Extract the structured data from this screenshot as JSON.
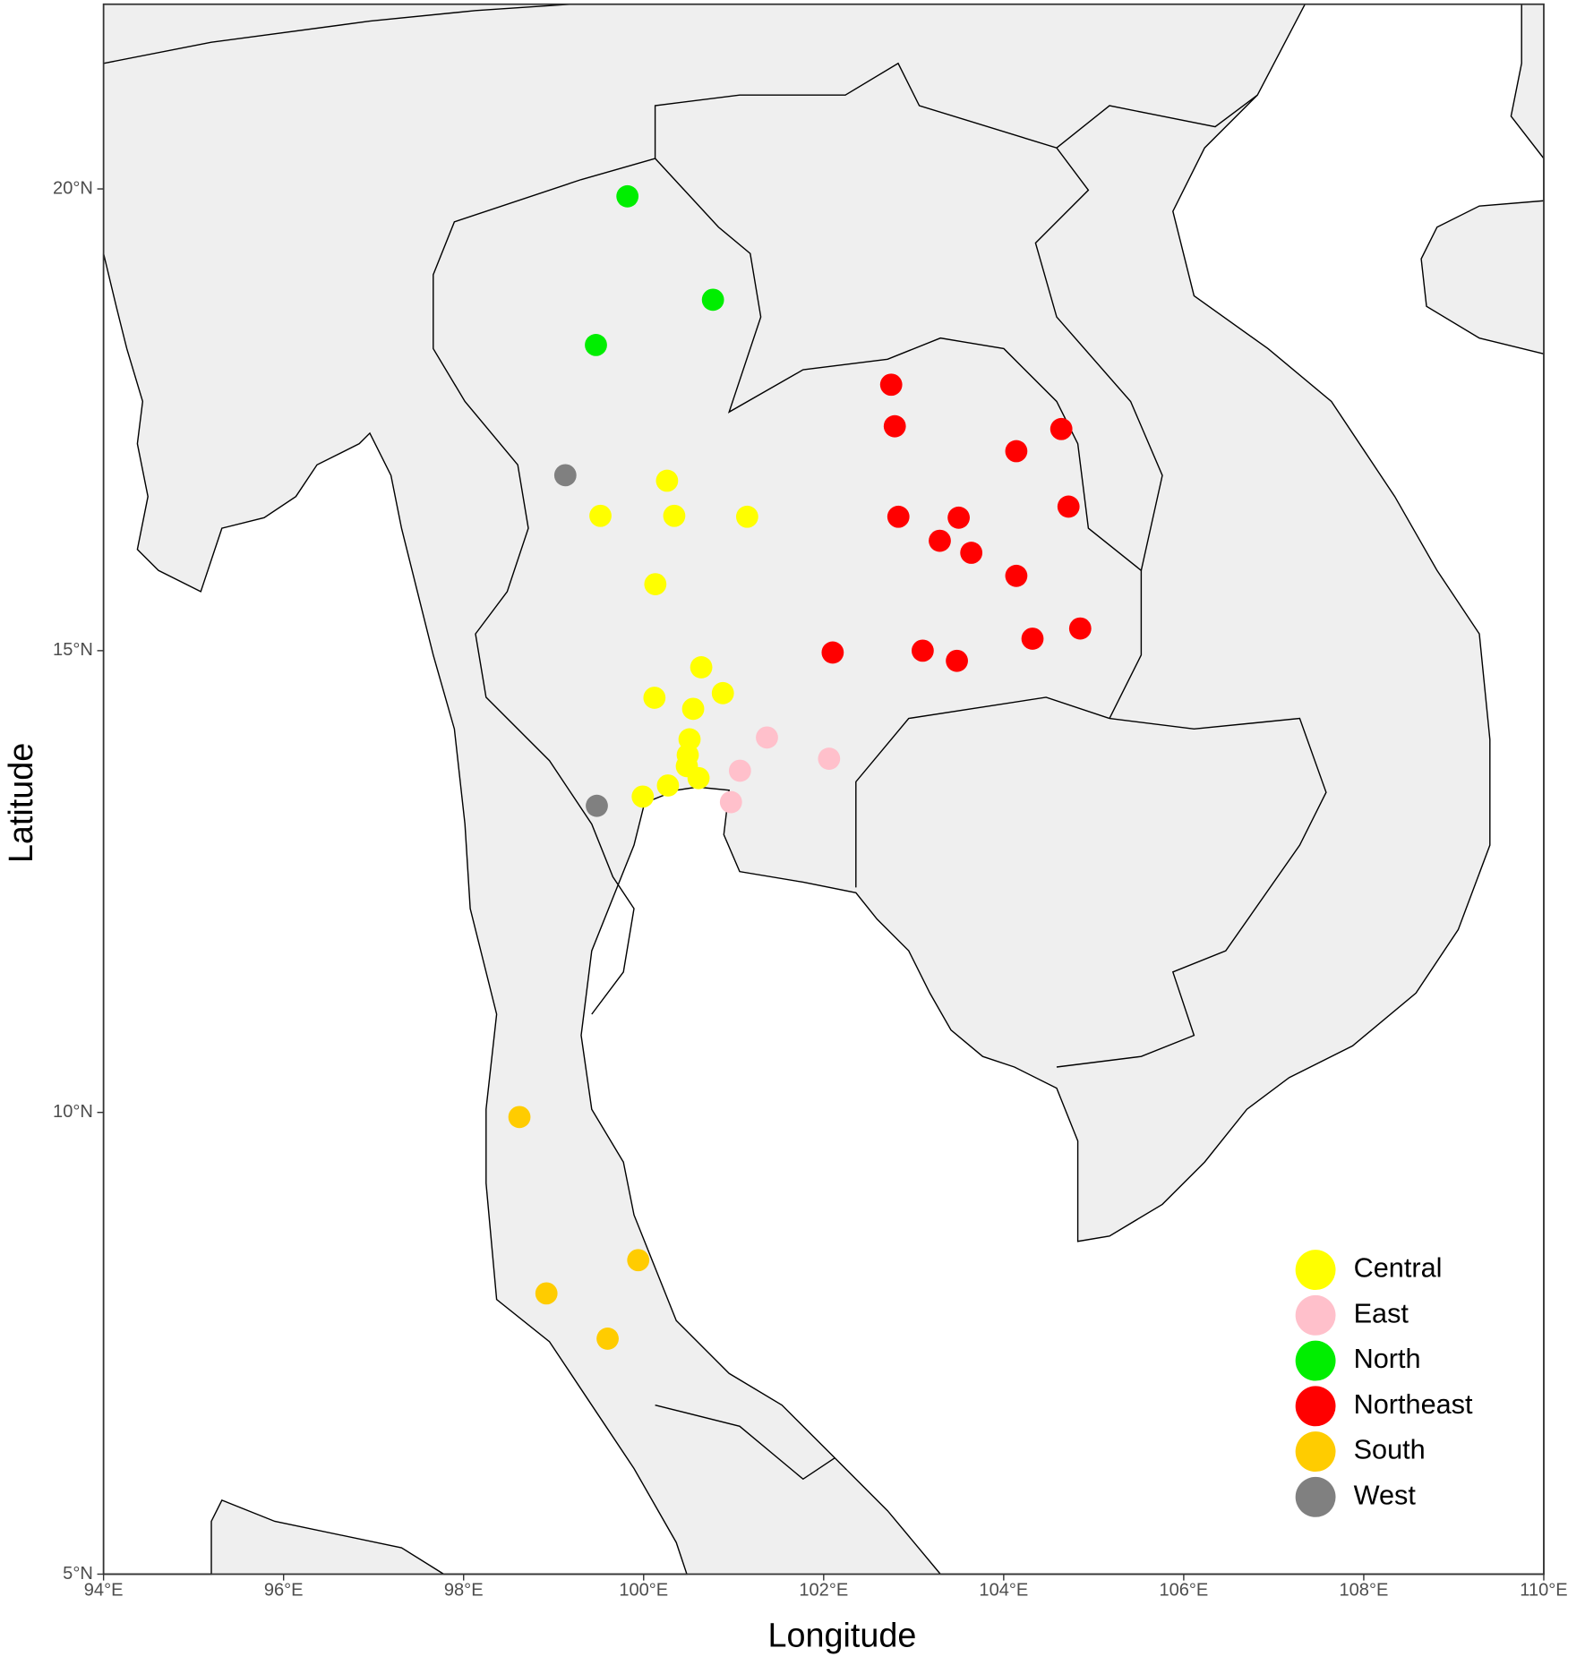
{
  "chart_data": {
    "type": "scatter",
    "x_label": "Longitude",
    "y_label": "Latitude",
    "xlim": [
      94,
      110
    ],
    "ylim": [
      5,
      22
    ],
    "xticks": [
      {
        "value": 94,
        "label": "94°E"
      },
      {
        "value": 96,
        "label": "96°E"
      },
      {
        "value": 98,
        "label": "98°E"
      },
      {
        "value": 100,
        "label": "100°E"
      },
      {
        "value": 102,
        "label": "102°E"
      },
      {
        "value": 104,
        "label": "104°E"
      },
      {
        "value": 106,
        "label": "106°E"
      },
      {
        "value": 108,
        "label": "108°E"
      },
      {
        "value": 110,
        "label": "110°E"
      }
    ],
    "yticks": [
      {
        "value": 5,
        "label": "5°N"
      },
      {
        "value": 10,
        "label": "10°N"
      },
      {
        "value": 15,
        "label": "15°N"
      },
      {
        "value": 20,
        "label": "20°N"
      }
    ],
    "legend_position": "bottom-right",
    "series": [
      {
        "name": "Central",
        "color": "#ffff00",
        "x": [
          100.26,
          99.52,
          100.34,
          101.15,
          100.13,
          100.64,
          100.12,
          100.88,
          100.55,
          100.51,
          100.49,
          100.48,
          100.61,
          100.27,
          99.99
        ],
        "values": [
          16.84,
          16.46,
          16.46,
          16.45,
          15.72,
          14.82,
          14.49,
          14.54,
          14.37,
          14.04,
          13.87,
          13.75,
          13.62,
          13.54,
          13.42
        ]
      },
      {
        "name": "East",
        "color": "#ffc0cb",
        "x": [
          101.37,
          102.06,
          101.07,
          100.97
        ],
        "values": [
          14.06,
          13.83,
          13.7,
          13.36
        ]
      },
      {
        "name": "North",
        "color": "#00ee00",
        "x": [
          99.82,
          100.77,
          99.47
        ],
        "values": [
          19.92,
          18.8,
          18.31
        ]
      },
      {
        "name": "Northeast",
        "color": "#ff0000",
        "x": [
          102.75,
          102.79,
          104.64,
          104.14,
          104.72,
          102.83,
          103.5,
          103.29,
          103.64,
          104.14,
          104.85,
          104.32,
          103.1,
          102.1,
          103.48
        ],
        "values": [
          17.88,
          17.43,
          17.4,
          17.16,
          16.56,
          16.45,
          16.44,
          16.19,
          16.06,
          15.81,
          15.24,
          15.13,
          15.0,
          14.98,
          14.89
        ]
      },
      {
        "name": "South",
        "color": "#ffcc00",
        "x": [
          98.62,
          99.94,
          98.92,
          99.6
        ],
        "values": [
          9.95,
          8.4,
          8.04,
          7.55
        ]
      },
      {
        "name": "West",
        "color": "#808080",
        "x": [
          99.13,
          99.48
        ],
        "values": [
          16.9,
          13.32
        ]
      }
    ]
  }
}
